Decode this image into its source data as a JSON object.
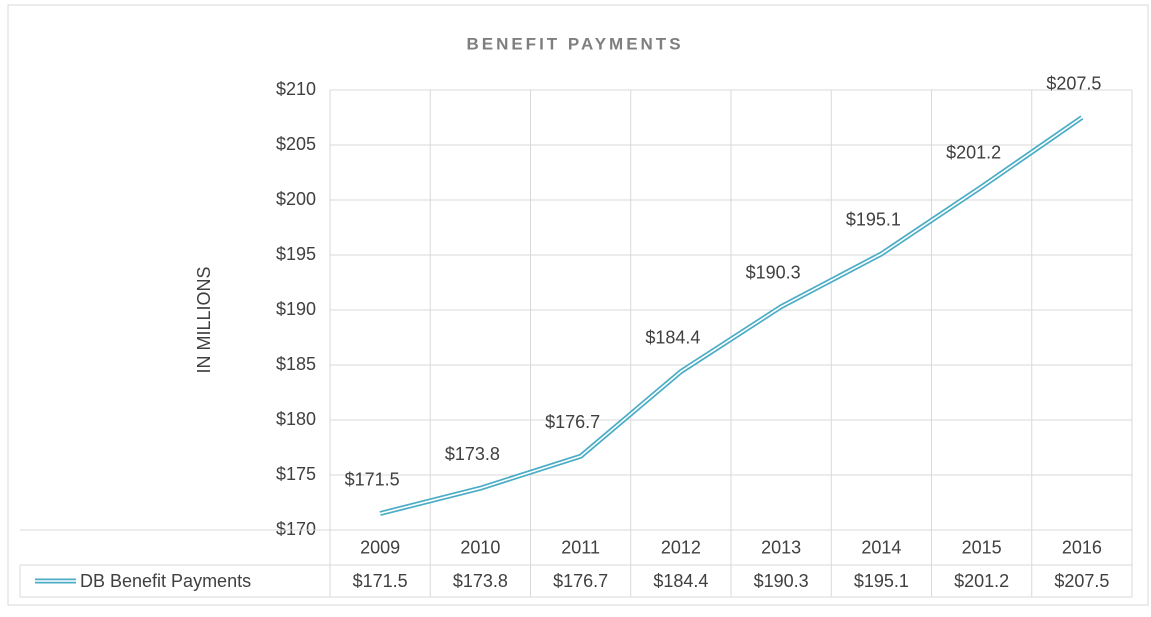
{
  "chart_data": {
    "type": "line",
    "title": "BENEFIT PAYMENTS",
    "y_label": "IN MILLIONS",
    "categories": [
      "2009",
      "2010",
      "2011",
      "2012",
      "2013",
      "2014",
      "2015",
      "2016"
    ],
    "series": [
      {
        "name": "DB Benefit Payments",
        "color": "#4bacc6",
        "values": [
          171.5,
          173.8,
          176.7,
          184.4,
          190.3,
          195.1,
          201.2,
          207.5
        ],
        "value_labels": [
          "$171.5",
          "$173.8",
          "$176.7",
          "$184.4",
          "$190.3",
          "$195.1",
          "$201.2",
          "$207.5"
        ]
      }
    ],
    "ylim": [
      170,
      210
    ],
    "yticks": [
      {
        "value": 170,
        "label": "$170"
      },
      {
        "value": 175,
        "label": "$175"
      },
      {
        "value": 180,
        "label": "$180"
      },
      {
        "value": 185,
        "label": "$185"
      },
      {
        "value": 190,
        "label": "$190"
      },
      {
        "value": 195,
        "label": "$195"
      },
      {
        "value": 200,
        "label": "$200"
      },
      {
        "value": 205,
        "label": "$205"
      },
      {
        "value": 210,
        "label": "$210"
      }
    ],
    "grid": true,
    "data_table": true
  }
}
